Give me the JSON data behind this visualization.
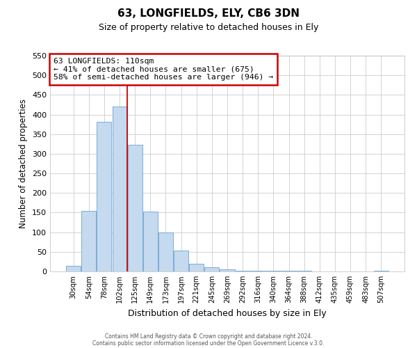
{
  "title": "63, LONGFIELDS, ELY, CB6 3DN",
  "subtitle": "Size of property relative to detached houses in Ely",
  "xlabel": "Distribution of detached houses by size in Ely",
  "ylabel": "Number of detached properties",
  "bar_color": "#c5d9ef",
  "bar_edge_color": "#7aadd4",
  "categories": [
    "30sqm",
    "54sqm",
    "78sqm",
    "102sqm",
    "125sqm",
    "149sqm",
    "173sqm",
    "197sqm",
    "221sqm",
    "245sqm",
    "269sqm",
    "292sqm",
    "316sqm",
    "340sqm",
    "364sqm",
    "388sqm",
    "412sqm",
    "435sqm",
    "459sqm",
    "483sqm",
    "507sqm"
  ],
  "values": [
    15,
    155,
    382,
    420,
    323,
    153,
    100,
    54,
    20,
    10,
    5,
    2,
    2,
    1,
    1,
    1,
    0,
    0,
    0,
    0,
    2
  ],
  "ylim": [
    0,
    550
  ],
  "yticks": [
    0,
    50,
    100,
    150,
    200,
    250,
    300,
    350,
    400,
    450,
    500,
    550
  ],
  "vline_x": 3.5,
  "vline_color": "#cc0000",
  "annotation_title": "63 LONGFIELDS: 110sqm",
  "annotation_line1": "← 41% of detached houses are smaller (675)",
  "annotation_line2": "58% of semi-detached houses are larger (946) →",
  "annotation_box_color": "#ffffff",
  "annotation_box_edge": "#cc0000",
  "footer1": "Contains HM Land Registry data © Crown copyright and database right 2024.",
  "footer2": "Contains public sector information licensed under the Open Government Licence v.3.0.",
  "background_color": "#ffffff",
  "grid_color": "#cccccc"
}
